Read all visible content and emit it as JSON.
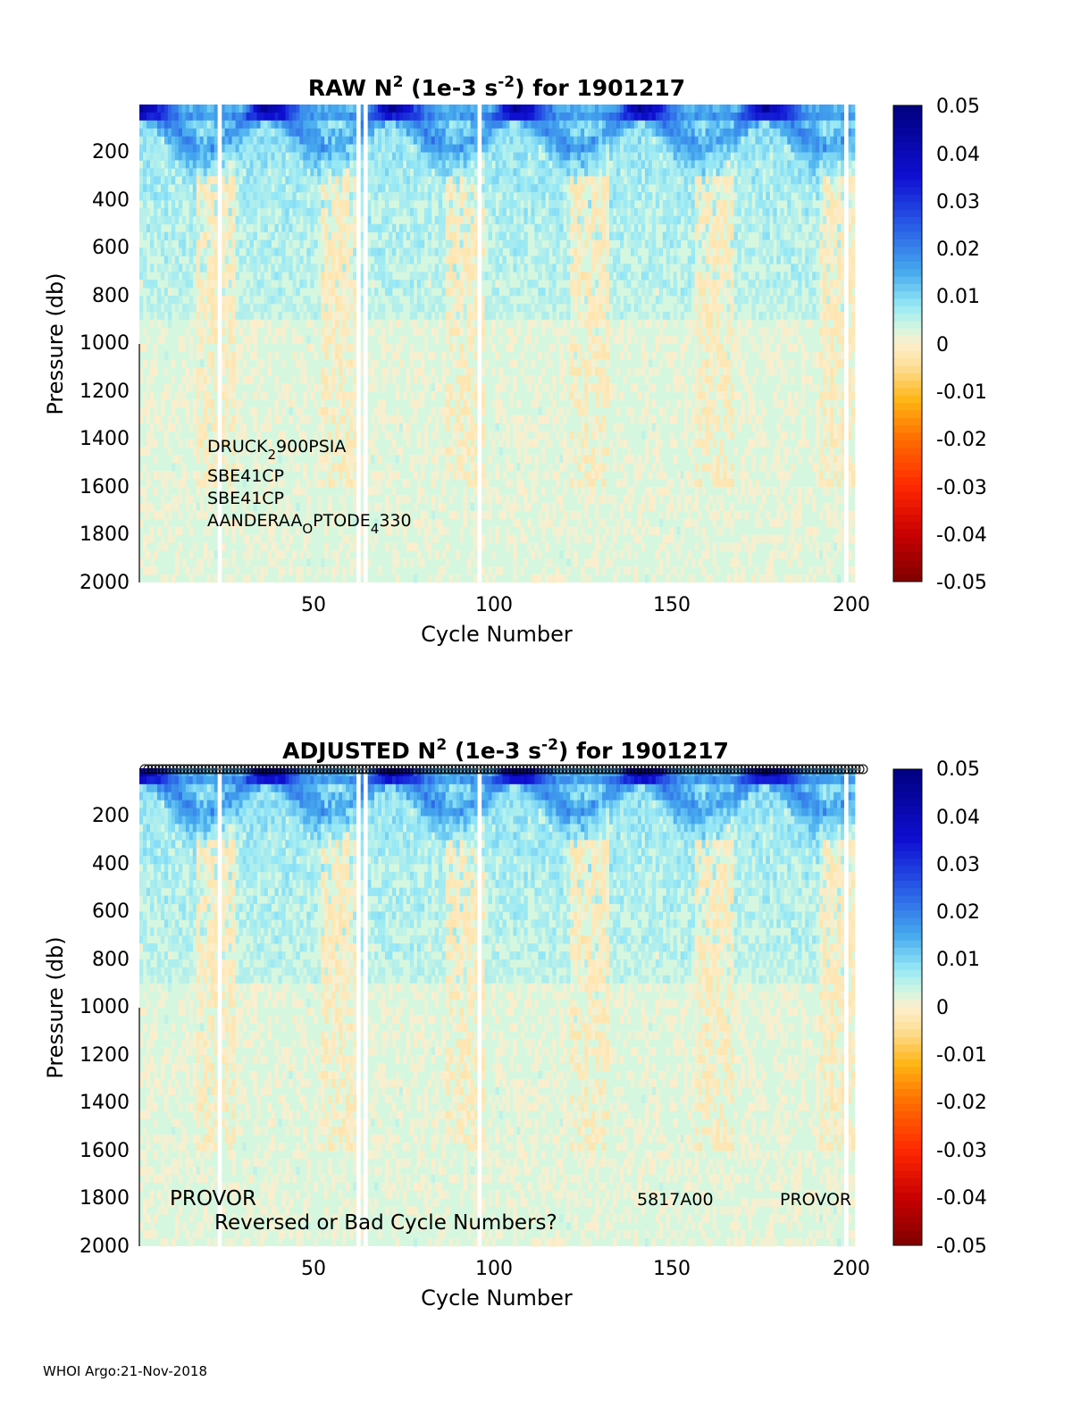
{
  "footer": "WHOI Argo:21-Nov-2018",
  "colorbar": {
    "ticks": [
      "0.05",
      "0.04",
      "0.03",
      "0.02",
      "0.01",
      "0",
      "-0.01",
      "-0.02",
      "-0.03",
      "-0.04",
      "-0.05"
    ],
    "range": [
      -0.05,
      0.05
    ],
    "colormap": "jet (dark red -> red -> orange -> cream at 0 -> cyan -> blue -> dark blue)"
  },
  "colors": {
    "background_field": "#d6f7df",
    "cream": "#fde9c4",
    "cyan": "#9be6f6",
    "dark_blue": "#00008f"
  },
  "chart_data": [
    {
      "type": "heatmap",
      "title_parts": [
        "RAW N",
        "2",
        " (1e-3 s",
        "-2",
        ") for 1901217"
      ],
      "xlabel": "Cycle Number",
      "ylabel": "Pressure (db)",
      "xlim": [
        1,
        202
      ],
      "ylim": [
        0,
        2000
      ],
      "y_reversed": true,
      "xticks": [
        "50",
        "100",
        "150",
        "200"
      ],
      "yticks": [
        "200",
        "400",
        "600",
        "800",
        "1000",
        "1200",
        "1400",
        "1600",
        "1800",
        "2000"
      ],
      "missing_cycles": [
        23,
        62,
        64,
        96,
        199
      ],
      "annotations": [
        {
          "parts": [
            "DRUCK",
            "2",
            "900PSIA"
          ]
        },
        {
          "parts": [
            "SBE41CP"
          ]
        },
        {
          "parts": [
            "SBE41CP"
          ]
        },
        {
          "parts": [
            "AANDERAA",
            "O",
            "PTODE",
            "4",
            "330"
          ]
        }
      ],
      "qc_flags_row": false
    },
    {
      "type": "heatmap",
      "title_parts": [
        "ADJUSTED N",
        "2",
        " (1e-3 s",
        "-2",
        ") for 1901217"
      ],
      "xlabel": "Cycle Number",
      "ylabel": "Pressure (db)",
      "xlim": [
        1,
        202
      ],
      "ylim": [
        0,
        2000
      ],
      "y_reversed": true,
      "xticks": [
        "50",
        "100",
        "150",
        "200"
      ],
      "yticks": [
        "200",
        "400",
        "600",
        "800",
        "1000",
        "1200",
        "1400",
        "1600",
        "1800",
        "2000"
      ],
      "missing_cycles": [
        23,
        62,
        64,
        96,
        199
      ],
      "annotations": [
        {
          "text": "PROVOR"
        },
        {
          "text": "Reversed or Bad Cycle Numbers?"
        },
        {
          "text": "5817A00"
        },
        {
          "text": "PROVOR"
        }
      ],
      "qc_flags_row": true
    }
  ]
}
